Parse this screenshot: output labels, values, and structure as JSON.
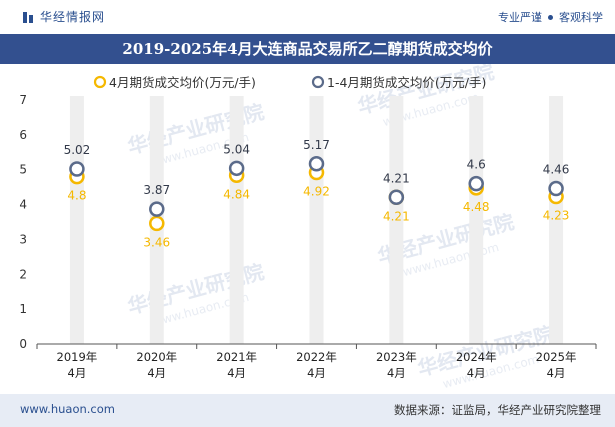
{
  "header": {
    "brand": "华经情报网",
    "tagline_left": "专业严谨",
    "tagline_right": "客观科学"
  },
  "chart_title": "2019-2025年4月大连商品交易所乙二醇期货成交均价",
  "footer": {
    "website": "www.huaon.com",
    "source": "数据来源：证监局，华经产业研究院整理"
  },
  "watermark": {
    "cn": "华经产业研究院",
    "en": "www.huaon.com"
  },
  "colors": {
    "brand_blue": "#33508f",
    "series1": "#f5b800",
    "series2": "#5b6b8a",
    "column_band": "#eeeeee"
  },
  "chart_data": {
    "type": "scatter",
    "title": "2019-2025年4月大连商品交易所乙二醇期货成交均价",
    "categories": [
      "2019年\n4月",
      "2020年\n4月",
      "2021年\n4月",
      "2022年\n4月",
      "2023年\n4月",
      "2024年\n4月",
      "2025年\n4月"
    ],
    "series": [
      {
        "name": "4月期货成交均价(万元/手)",
        "values": [
          4.8,
          3.46,
          4.84,
          4.92,
          4.21,
          4.48,
          4.23
        ],
        "color": "#f5b800",
        "labels": [
          "4.8",
          "3.46",
          "4.84",
          "4.92",
          "4.21",
          "4.48",
          "4.23"
        ]
      },
      {
        "name": "1-4月期货成交均价(万元/手)",
        "values": [
          5.02,
          3.87,
          5.04,
          5.17,
          4.21,
          4.6,
          4.46
        ],
        "color": "#5b6b8a",
        "labels": [
          "5.02",
          "3.87",
          "5.04",
          "5.17",
          "4.21",
          "4.6",
          "4.46"
        ]
      }
    ],
    "y_ticks": [
      "0",
      "1",
      "2",
      "3",
      "4",
      "5",
      "6",
      "7"
    ],
    "ylim": [
      0,
      7
    ],
    "legend_position": "top",
    "grid": false
  }
}
